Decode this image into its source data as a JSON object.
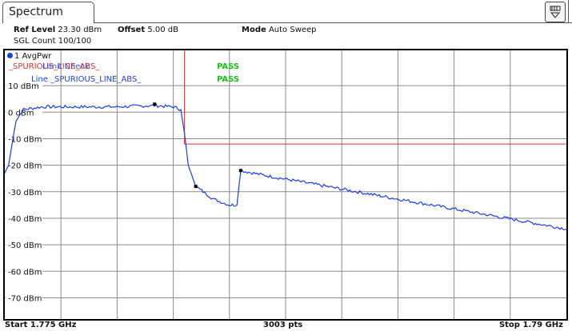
{
  "tab": {
    "label": "Spectrum"
  },
  "header": {
    "ref_level_label": "Ref Level",
    "ref_level_value": "23.30 dBm",
    "offset_label": "Offset",
    "offset_value": "5.00 dB",
    "mode_label": "Mode",
    "mode_value": "Auto Sweep",
    "sgl_count": "SGL Count 100/100"
  },
  "diagram": {
    "trace_label": "1 AvgPwr",
    "limit_line_red": "_SPURIOUS_LINE_ABS_",
    "limit_check_label": "Limit Check",
    "line_label": "Line _SPURIOUS_LINE_ABS_",
    "pass_1": "PASS",
    "pass_2": "PASS"
  },
  "chart_data": {
    "type": "line",
    "ylabel_ticks": [
      "10 dBm",
      "0 dBm",
      "-10 dBm",
      "-20 dBm",
      "-30 dBm",
      "-40 dBm",
      "-50 dBm",
      "-60 dBm",
      "-70 dBm"
    ],
    "ylim": [
      -78,
      23.3
    ],
    "xlim": [
      1.775,
      1.79
    ],
    "x_unit": "GHz",
    "grid": true,
    "series": [
      {
        "color": "#1c3fe0",
        "x": [
          1.775,
          1.7751,
          1.7753,
          1.7755,
          1.776,
          1.777,
          1.778,
          1.779,
          1.7795,
          1.7797,
          1.7798,
          1.7799,
          1.7801,
          1.7803,
          1.7806,
          1.781,
          1.7812,
          1.7813,
          1.782,
          1.783,
          1.784,
          1.785,
          1.786,
          1.787,
          1.788,
          1.789,
          1.79
        ],
        "y": [
          -23,
          -20,
          -3,
          1,
          2,
          2,
          2,
          2.5,
          2,
          1,
          -8,
          -20,
          -28,
          -30,
          -33,
          -35,
          -35,
          -22,
          -24,
          -26.5,
          -29,
          -31.5,
          -34,
          -36.5,
          -39,
          -41.5,
          -44
        ]
      }
    ],
    "limit_line": {
      "color": "#e03030",
      "x": [
        1.7798,
        1.7798,
        1.79
      ],
      "y": [
        23.3,
        -12,
        -12
      ]
    },
    "markers": [
      {
        "x": 1.779,
        "y": 3
      },
      {
        "x": 1.7801,
        "y": -28
      },
      {
        "x": 1.7813,
        "y": -22
      }
    ]
  },
  "footer": {
    "start": "Start 1.775 GHz",
    "points": "3003 pts",
    "stop": "Stop 1.79 GHz"
  },
  "colors": {
    "trace": "#1c3fe0",
    "limit": "#e03030",
    "pass": "#18c018",
    "grid": "#8a8a8a"
  }
}
